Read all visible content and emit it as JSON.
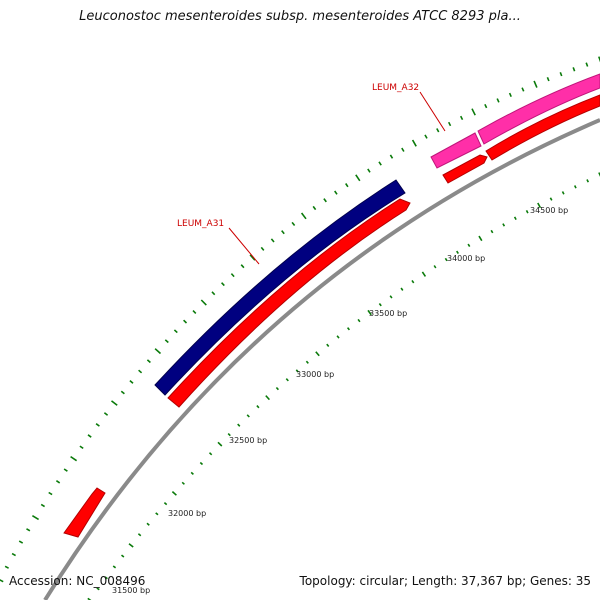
{
  "title": "Leuconostoc mesenteroides subsp. mesenteroides ATCC 8293 pla...",
  "footer": {
    "accession": "Accession: NC_008496",
    "summary": "Topology: circular; Length: 37,367 bp; Genes: 35"
  },
  "colors": {
    "backbone": "#8a8a8a",
    "cds": "#ff0000",
    "gene_a31": "#000080",
    "gene_a32": "#ff2fa8",
    "tick": "#0a7a0a",
    "label": "#cc0000"
  },
  "ticks": [
    "31500 bp",
    "32000 bp",
    "32500 bp",
    "33000 bp",
    "33500 bp",
    "34000 bp",
    "34500 bp"
  ],
  "gene_labels": [
    "LEUM_A31",
    "LEUM_A32"
  ]
}
